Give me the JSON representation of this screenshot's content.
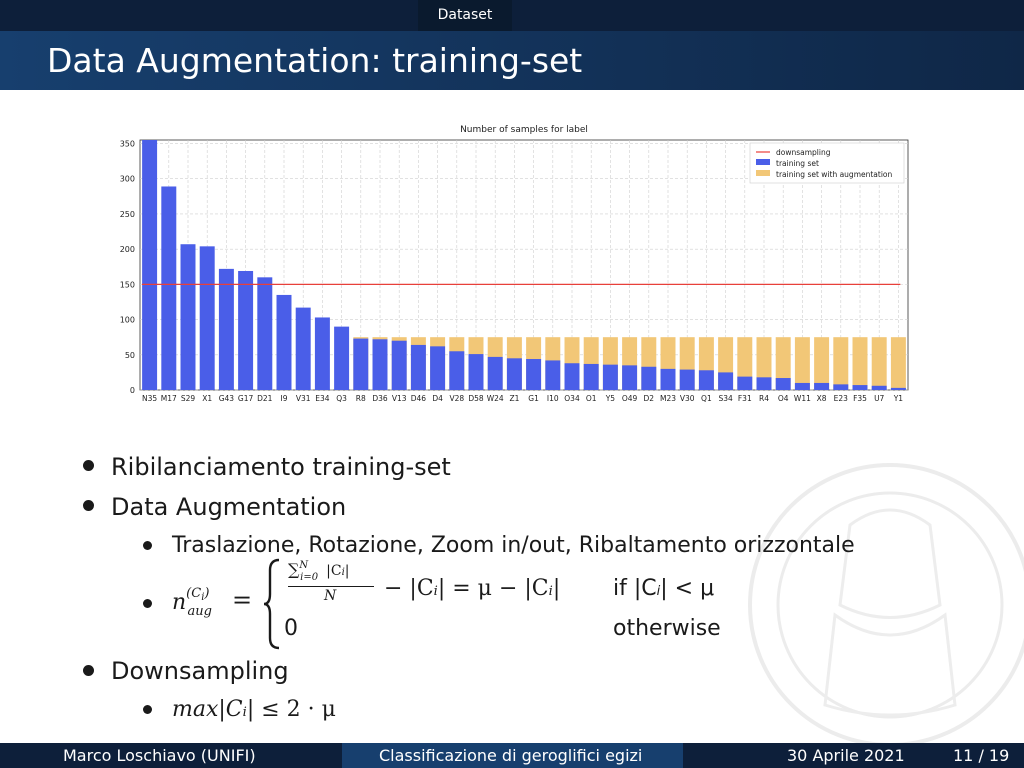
{
  "header": {
    "section": "Dataset",
    "title": "Data Augmentation: training-set"
  },
  "chart_data": {
    "type": "bar",
    "title": "Number of samples for label",
    "categories": [
      "N35",
      "M17",
      "S29",
      "X1",
      "G43",
      "G17",
      "D21",
      "I9",
      "V31",
      "E34",
      "Q3",
      "R8",
      "D36",
      "V13",
      "D46",
      "D4",
      "V28",
      "D58",
      "W24",
      "Z1",
      "G1",
      "I10",
      "O34",
      "O1",
      "Y5",
      "O49",
      "D2",
      "M23",
      "V30",
      "Q1",
      "S34",
      "F31",
      "R4",
      "O4",
      "W11",
      "X8",
      "E23",
      "F35",
      "U7",
      "Y1"
    ],
    "series": [
      {
        "name": "training set",
        "color": "#4a5ee8",
        "values": [
          358,
          289,
          207,
          204,
          172,
          169,
          160,
          135,
          117,
          103,
          90,
          73,
          72,
          70,
          64,
          62,
          55,
          51,
          47,
          45,
          44,
          42,
          38,
          37,
          36,
          35,
          33,
          30,
          29,
          28,
          25,
          19,
          18,
          17,
          10,
          10,
          8,
          7,
          6,
          3
        ]
      },
      {
        "name": "training set with augmentation",
        "color": "#f2c777",
        "values": [
          0,
          0,
          0,
          0,
          0,
          0,
          0,
          0,
          0,
          0,
          0,
          75,
          75,
          75,
          75,
          75,
          75,
          75,
          75,
          75,
          75,
          75,
          75,
          75,
          75,
          75,
          75,
          75,
          75,
          75,
          75,
          75,
          75,
          75,
          75,
          75,
          75,
          75,
          75,
          75
        ]
      }
    ],
    "lines": [
      {
        "name": "downsampling",
        "color": "#e8403a",
        "y": 150
      }
    ],
    "ylim": [
      0,
      355
    ],
    "yticks": [
      0,
      50,
      100,
      150,
      200,
      250,
      300,
      350
    ],
    "grid": true,
    "legend": "top-right",
    "xlabel": "",
    "ylabel": ""
  },
  "bullets": {
    "b1": "Ribilanciamento training-set",
    "b2": "Data Augmentation",
    "b2_sub1": "Traslazione, Rotazione, Zoom in/out, Ribaltamento orizzontale",
    "b3": "Downsampling"
  },
  "formula": {
    "lhs_n": "n",
    "lhs_sup": "(C",
    "lhs_sup_i": "i",
    "lhs_sup_close": ")",
    "lhs_sub": "aug",
    "eq": "=",
    "num_sum": "∑",
    "num_sup": "N",
    "num_sub": "i=0",
    "num_term": "|C",
    "num_term_i": "i",
    "num_term_close": "|",
    "den": "N",
    "case1_rest": "− |C",
    "case1_i": "i",
    "case1_rest2": "| = μ − |C",
    "case1_i2": "i",
    "case1_rest3": "|",
    "case1_cond": "if |C",
    "case1_cond_i": "i",
    "case1_cond_rest": "| < μ",
    "case2_val": "0",
    "case2_cond": "otherwise",
    "down_expr": "max|C",
    "down_i": "i",
    "down_rest": "| ≤ 2 · μ"
  },
  "footer": {
    "author": "Marco Loschiavo  (UNIFI)",
    "talk": "Classificazione di geroglifici egizi",
    "date": "30 Aprile 2021",
    "page": "11 / 19"
  }
}
